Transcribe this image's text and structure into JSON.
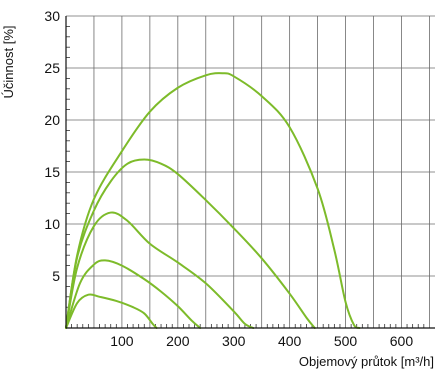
{
  "chart_data": {
    "type": "line",
    "xlabel": "Objemový průtok [m³/h]",
    "ylabel": "Účinnost [%]",
    "xlim": [
      0,
      660
    ],
    "ylim": [
      0,
      30
    ],
    "x_ticks": [
      100,
      200,
      300,
      400,
      500,
      600
    ],
    "y_ticks": [
      5,
      10,
      15,
      20,
      25,
      30
    ],
    "x_tick_labels": [
      "100",
      "200",
      "300",
      "400",
      "500",
      "600"
    ],
    "y_tick_labels": [
      "5",
      "10",
      "15",
      "20",
      "25",
      "30"
    ],
    "grid": true,
    "legend": "none",
    "series_color": "#7dbb2a",
    "series": [
      {
        "x": [
          0,
          20,
          50,
          100,
          150,
          200,
          250,
          280,
          300,
          350,
          400,
          450,
          480,
          500,
          515,
          525
        ],
        "y": [
          0,
          7,
          12.4,
          17,
          20.8,
          23.1,
          24.3,
          24.5,
          24.2,
          22.3,
          19.3,
          13.4,
          7.5,
          2.5,
          0.3,
          0
        ]
      },
      {
        "x": [
          0,
          20,
          50,
          80,
          110,
          140,
          170,
          200,
          250,
          300,
          350,
          400,
          430,
          445
        ],
        "y": [
          0,
          6.8,
          11.3,
          14.1,
          15.8,
          16.2,
          15.8,
          14.8,
          12.3,
          9.6,
          6.7,
          3.3,
          1.0,
          0
        ]
      },
      {
        "x": [
          0,
          20,
          50,
          80,
          110,
          150,
          200,
          250,
          300,
          320,
          335
        ],
        "y": [
          0,
          5.8,
          9.8,
          11.1,
          10.3,
          8.1,
          6.3,
          4.3,
          1.6,
          0.4,
          0
        ]
      },
      {
        "x": [
          0,
          25,
          50,
          70,
          100,
          140,
          170,
          200,
          225,
          240
        ],
        "y": [
          0,
          4.3,
          6.1,
          6.5,
          6.0,
          4.7,
          3.5,
          2.1,
          0.7,
          0
        ]
      },
      {
        "x": [
          0,
          20,
          40,
          60,
          90,
          120,
          140,
          155,
          162
        ],
        "y": [
          0,
          2.4,
          3.2,
          3.0,
          2.6,
          2.0,
          1.4,
          0.4,
          0
        ]
      }
    ]
  }
}
